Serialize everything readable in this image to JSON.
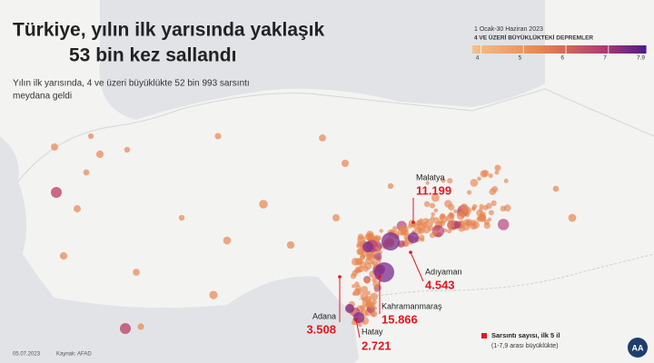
{
  "header": {
    "title_lines": [
      "Türkiye, yılın ilk yarısında yaklaşık",
      "53 bin kez sallandı"
    ],
    "subtitle_lines": [
      "Yılın ilk yarısında, 4 ve üzeri büyüklükte 52 bin 993 sarsıntı",
      "meydana geldi"
    ]
  },
  "legend": {
    "date_range": "1 Ocak-30 Haziran 2023",
    "title": "4 VE ÜZERİ BÜYÜKLÜKTEKİ DEPREMLER",
    "lim": [
      3.8,
      7.9
    ],
    "ticks": [
      4,
      5,
      6,
      7,
      7.9
    ]
  },
  "cities": [
    {
      "name": "Malatya",
      "count": "11.199"
    },
    {
      "name": "Adıyaman",
      "count": "4.543"
    },
    {
      "name": "Kahramanmaraş",
      "count": "15.866"
    },
    {
      "name": "Adana",
      "count": "3.508"
    },
    {
      "name": "Hatay",
      "count": "2.721"
    }
  ],
  "key": {
    "line1": "Sarsıntı sayısı,  ilk 5 il",
    "line2": "(1-7,9 arası büyüklükte)"
  },
  "footer": {
    "date": "05.07.2023",
    "source": "Kaynak: AFAD",
    "logo": "AA"
  }
}
